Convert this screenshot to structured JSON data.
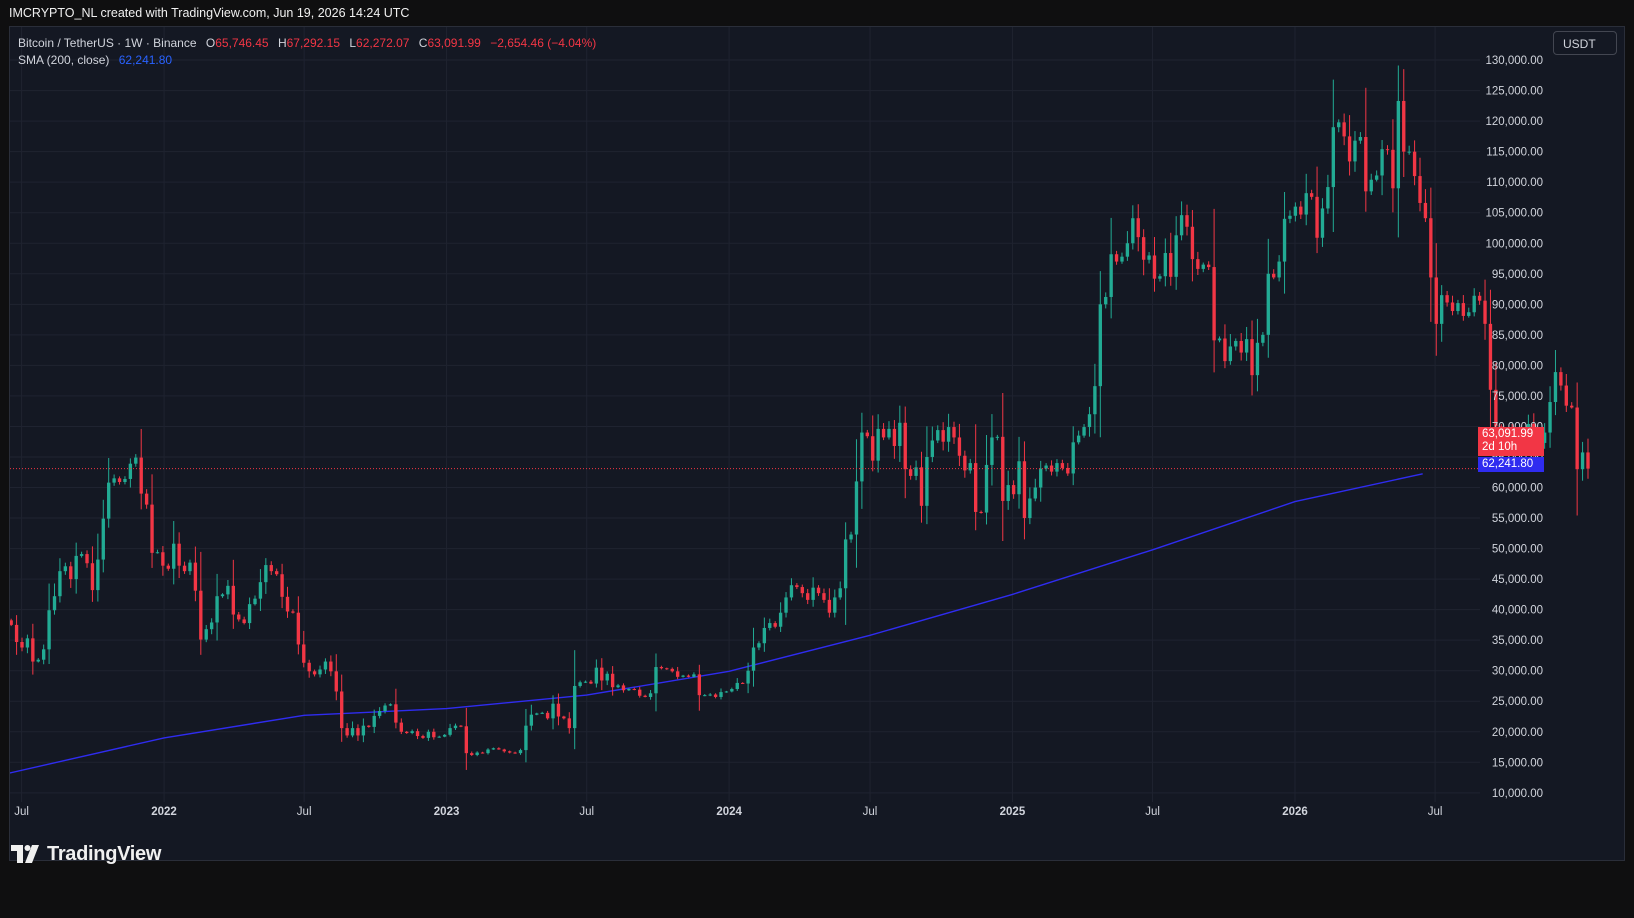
{
  "header": {
    "attribution": "IMCRYPTO_NL created with TradingView.com, Jun 19, 2026 14:24 UTC"
  },
  "legend": {
    "symbol": "Bitcoin / TetherUS · 1W · Binance",
    "o_label": "O",
    "o_value": "65,746.45",
    "h_label": "H",
    "h_value": "67,292.15",
    "l_label": "L",
    "l_value": "62,272.07",
    "c_label": "C",
    "c_value": "63,091.99",
    "change": "−2,654.46 (−4.04%)",
    "sma_label": "SMA (200, close)",
    "sma_value": "62,241.80"
  },
  "toolbar": {
    "currency": "USDT"
  },
  "tags": {
    "last_price": "63,091.99",
    "countdown": "2d 10h",
    "sma": "62,241.80"
  },
  "footer": {
    "brand": "TradingView"
  },
  "colors": {
    "up": "#22ab94",
    "down": "#f23645",
    "sma": "#2f2cf0",
    "background": "#141823",
    "grid": "#1f2330"
  },
  "chart_data": {
    "type": "candlestick",
    "symbol": "BTCUSDT",
    "interval": "1W",
    "exchange": "Binance",
    "y_axis": {
      "ticks": [
        10000,
        15000,
        20000,
        25000,
        30000,
        35000,
        40000,
        45000,
        50000,
        55000,
        60000,
        65000,
        70000,
        75000,
        80000,
        85000,
        90000,
        95000,
        100000,
        105000,
        110000,
        115000,
        120000,
        125000,
        130000
      ],
      "tick_labels": [
        "10,000.00",
        "15,000.00",
        "20,000.00",
        "25,000.00",
        "30,000.00",
        "35,000.00",
        "40,000.00",
        "45,000.00",
        "50,000.00",
        "55,000.00",
        "60,000.00",
        "65,000.00",
        "70,000.00",
        "75,000.00",
        "80,000.00",
        "85,000.00",
        "90,000.00",
        "95,000.00",
        "100,000.00",
        "105,000.00",
        "110,000.00",
        "115,000.00",
        "120,000.00",
        "125,000.00",
        "130,000.00"
      ],
      "range": [
        8500,
        130500
      ]
    },
    "x_axis": {
      "range": [
        "2021-06-16",
        "2026-08-28"
      ],
      "ticks": [
        {
          "date": "2021-07-01",
          "label": "Jul",
          "year": false
        },
        {
          "date": "2022-01-01",
          "label": "2022",
          "year": true
        },
        {
          "date": "2022-07-01",
          "label": "Jul",
          "year": false
        },
        {
          "date": "2023-01-01",
          "label": "2023",
          "year": true
        },
        {
          "date": "2023-07-01",
          "label": "Jul",
          "year": false
        },
        {
          "date": "2024-01-01",
          "label": "2024",
          "year": true
        },
        {
          "date": "2024-07-01",
          "label": "Jul",
          "year": false
        },
        {
          "date": "2025-01-01",
          "label": "2025",
          "year": true
        },
        {
          "date": "2025-07-01",
          "label": "Jul",
          "year": false
        },
        {
          "date": "2026-01-01",
          "label": "2026",
          "year": true
        },
        {
          "date": "2026-07-01",
          "label": "Jul",
          "year": false
        }
      ]
    },
    "first_week": "2021-06-14",
    "closes": [
      37500,
      34700,
      33800,
      35300,
      31500,
      31800,
      33500,
      39900,
      42200,
      46300,
      47100,
      45000,
      48800,
      49100,
      47600,
      43200,
      48200,
      54900,
      60800,
      61500,
      60900,
      61400,
      63900,
      64900,
      59000,
      57200,
      49300,
      49400,
      47200,
      46700,
      50800,
      47200,
      46300,
      47700,
      43100,
      35100,
      36800,
      37900,
      42200,
      42500,
      43900,
      39200,
      38400,
      37800,
      40900,
      41800,
      44500,
      47300,
      46300,
      45800,
      42100,
      39700,
      39500,
      34300,
      31300,
      29900,
      29400,
      30200,
      31500,
      29900,
      26600,
      20600,
      19400,
      20600,
      19400,
      21000,
      20800,
      22600,
      23400,
      24300,
      24500,
      21500,
      20000,
      19800,
      20100,
      19300,
      19000,
      20000,
      19100,
      19200,
      19500,
      20600,
      21000,
      20900,
      16500,
      16200,
      16600,
      16500,
      17100,
      17300,
      17100,
      16800,
      16600,
      16500,
      17000,
      21000,
      22800,
      23000,
      23100,
      22200,
      24600,
      22500,
      22200,
      20600,
      27500,
      28100,
      28200,
      27900,
      30500,
      28400,
      29500,
      27300,
      27600,
      26800,
      27000,
      26900,
      25900,
      25700,
      26300,
      30600,
      30400,
      30300,
      29900,
      29000,
      29200,
      29000,
      29400,
      26000,
      26000,
      26100,
      25700,
      26500,
      26600,
      27000,
      28000,
      27900,
      30000,
      33800,
      34500,
      37000,
      37800,
      37200,
      39500,
      42000,
      44000,
      43700,
      42700,
      41600,
      43600,
      42700,
      41600,
      39500,
      42000,
      43500,
      51500,
      52300,
      61000,
      69000,
      68400,
      64400,
      69600,
      68200,
      69600,
      66800,
      70600,
      63000,
      61900,
      63300,
      57000,
      65000,
      67700,
      69400,
      67500,
      69900,
      68200,
      65200,
      62800,
      64000,
      56000,
      55900,
      63700,
      68200,
      68300,
      57800,
      60400,
      58900,
      64300,
      55000,
      58200,
      60000,
      63100,
      63600,
      62600,
      64000,
      63200,
      62300,
      67400,
      68500,
      69900,
      72000,
      76600,
      90000,
      91200,
      98200,
      97000,
      97800,
      100000,
      104100,
      101000,
      97300,
      98000,
      94200,
      94600,
      98400,
      94500,
      101300,
      104600,
      102700,
      97400,
      95800,
      96500,
      96100,
      84100,
      84400,
      80700,
      83100,
      84000,
      82100,
      84300,
      78400,
      83700,
      85000,
      95000,
      94400,
      97000,
      104000,
      104500,
      106000,
      104700,
      108200,
      107600,
      100900,
      105700,
      109200,
      119000,
      119800,
      117500,
      113400,
      116800,
      117400,
      108500,
      110400,
      111100,
      115400,
      115300,
      109000,
      123300,
      115000,
      115000,
      111000,
      106600,
      104100,
      94400,
      86800,
      91500,
      90300,
      88900,
      90200,
      88100,
      88700,
      91400,
      90600,
      86800,
      76000,
      70000,
      68900,
      68500,
      66100,
      67500,
      68600,
      70400,
      66600,
      67300,
      69000,
      74000,
      78900,
      76700,
      73400,
      73100,
      63000,
      65746,
      63092
    ],
    "sma200": {
      "label": "SMA (200, close)",
      "last_value": 62241.8,
      "points": [
        {
          "date": "2021-06-14",
          "value": 13200
        },
        {
          "date": "2022-01-01",
          "value": 19000
        },
        {
          "date": "2022-07-01",
          "value": 22700
        },
        {
          "date": "2023-01-01",
          "value": 23800
        },
        {
          "date": "2023-07-01",
          "value": 26000
        },
        {
          "date": "2024-01-01",
          "value": 29900
        },
        {
          "date": "2024-07-01",
          "value": 35800
        },
        {
          "date": "2025-01-01",
          "value": 42500
        },
        {
          "date": "2025-07-01",
          "value": 49800
        },
        {
          "date": "2026-01-01",
          "value": 57700
        },
        {
          "date": "2026-06-15",
          "value": 62241.8
        }
      ]
    },
    "last_price": 63091.99,
    "grid": true
  }
}
